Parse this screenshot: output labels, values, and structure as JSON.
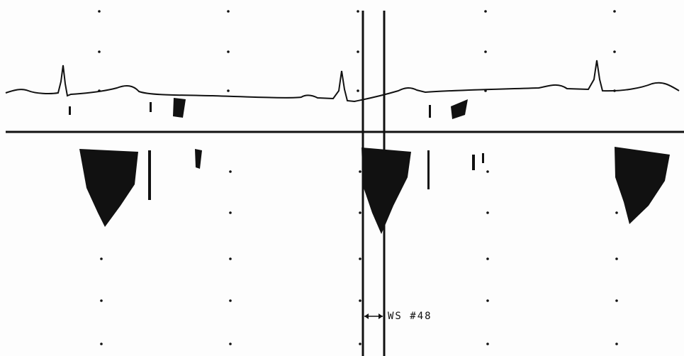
{
  "label": "WS #48"
}
